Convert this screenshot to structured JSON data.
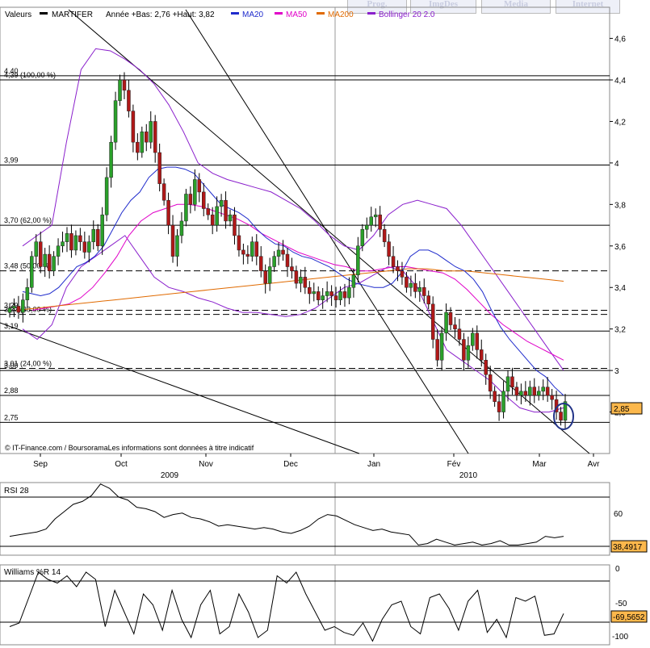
{
  "tabs": [
    {
      "label": "Prog."
    },
    {
      "label": "ImgDes"
    },
    {
      "label": "Media"
    },
    {
      "label": "Internet"
    }
  ],
  "header": {
    "valeurs": "Valeurs",
    "symbol": "MARTIFER",
    "info": "Année +Bas: 2,76 +Haut: 3,82",
    "legend": [
      {
        "name": "MA20",
        "color": "#1f2bcc"
      },
      {
        "name": "MA50",
        "color": "#e000c8"
      },
      {
        "name": "MA200",
        "color": "#e06a00"
      },
      {
        "name": "Bollinger 20 2.0",
        "color": "#8a1fcc"
      }
    ]
  },
  "footer_note": "© IT-Finance.com / BoursoramaLes informations sont données à titre indicatif",
  "chart_data": [
    {
      "type": "candlestick",
      "ylim": [
        2.6,
        4.75
      ],
      "y_ticks": [
        "4,6",
        "4,4",
        "4,2",
        "4",
        "3,8",
        "3,6",
        "3,4",
        "3,2",
        "3",
        "2,8"
      ],
      "x_labels": [
        "Sep",
        "Oct",
        "Nov",
        "Dec",
        "Jan",
        "Fév",
        "Mar",
        "Avr"
      ],
      "year_labels": [
        "2009",
        "2010"
      ],
      "last_price_label": "2,85",
      "levels": [
        {
          "value": 4.42,
          "label": "4,40",
          "style": "solid"
        },
        {
          "value": 4.4,
          "label": "4,39 (100,00 %)",
          "style": "solid"
        },
        {
          "value": 3.99,
          "label": "3,99",
          "style": "solid"
        },
        {
          "value": 3.7,
          "label": "3,70 (62,00 %)",
          "style": "solid"
        },
        {
          "value": 3.48,
          "label": "3,48 (50,00 %)",
          "style": "dashed"
        },
        {
          "value": 3.29,
          "label": "3,29",
          "style": "dashed"
        },
        {
          "value": 3.27,
          "label": "3,27 (38,00 %)",
          "style": "dashed"
        },
        {
          "value": 3.19,
          "label": "3,19",
          "style": "solid"
        },
        {
          "value": 3.01,
          "label": "3,01 (24,00 %)",
          "style": "dashed"
        },
        {
          "value": 3.0,
          "label": "3,00",
          "style": "solid"
        },
        {
          "value": 2.88,
          "label": "2,88",
          "style": "solid"
        },
        {
          "value": 2.75,
          "label": "2,75",
          "style": "solid"
        }
      ],
      "close": [
        3.3,
        3.31,
        3.28,
        3.34,
        3.4,
        3.55,
        3.62,
        3.5,
        3.56,
        3.48,
        3.55,
        3.6,
        3.62,
        3.66,
        3.58,
        3.65,
        3.62,
        3.57,
        3.62,
        3.68,
        3.6,
        3.75,
        3.93,
        4.1,
        4.3,
        4.4,
        4.35,
        4.25,
        4.1,
        4.05,
        4.15,
        4.1,
        4.2,
        4.05,
        3.9,
        3.82,
        3.7,
        3.55,
        3.65,
        3.72,
        3.85,
        3.8,
        3.92,
        3.86,
        3.78,
        3.75,
        3.7,
        3.79,
        3.82,
        3.72,
        3.75,
        3.65,
        3.58,
        3.56,
        3.55,
        3.62,
        3.55,
        3.48,
        3.42,
        3.5,
        3.55,
        3.58,
        3.56,
        3.5,
        3.48,
        3.42,
        3.45,
        3.4,
        3.37,
        3.38,
        3.34,
        3.36,
        3.38,
        3.36,
        3.34,
        3.38,
        3.35,
        3.4,
        3.46,
        3.6,
        3.68,
        3.7,
        3.74,
        3.75,
        3.68,
        3.62,
        3.55,
        3.5,
        3.48,
        3.45,
        3.4,
        3.42,
        3.38,
        3.4,
        3.36,
        3.32,
        3.15,
        3.05,
        3.18,
        3.28,
        3.22,
        3.2,
        3.15,
        3.05,
        3.12,
        3.18,
        3.1,
        3.05,
        2.98,
        2.9,
        2.85,
        2.8,
        2.9,
        2.97,
        2.92,
        2.88,
        2.9,
        2.88,
        2.92,
        2.88,
        2.9,
        2.92,
        2.88,
        2.86,
        2.8,
        2.76,
        2.85
      ],
      "ma20": [
        3.38,
        3.37,
        3.36,
        3.37,
        3.4,
        3.45,
        3.5,
        3.52,
        3.55,
        3.6,
        3.68,
        3.76,
        3.82,
        3.86,
        3.93,
        3.97,
        3.98,
        3.98,
        3.97,
        3.95,
        3.9,
        3.85,
        3.8,
        3.78,
        3.76,
        3.73,
        3.68,
        3.64,
        3.61,
        3.6,
        3.57,
        3.55,
        3.54,
        3.52,
        3.5,
        3.47,
        3.44,
        3.42,
        3.41,
        3.4,
        3.4,
        3.42,
        3.47,
        3.55,
        3.58,
        3.58,
        3.56,
        3.53,
        3.5,
        3.48,
        3.44,
        3.38,
        3.29,
        3.21,
        3.15,
        3.1,
        3.05,
        3.0,
        2.97,
        2.92,
        2.88
      ],
      "ma50": [
        3.29,
        3.3,
        3.31,
        3.32,
        3.35,
        3.4,
        3.47,
        3.55,
        3.65,
        3.72,
        3.76,
        3.78,
        3.8,
        3.8,
        3.79,
        3.77,
        3.75,
        3.73,
        3.7,
        3.66,
        3.63,
        3.6,
        3.57,
        3.55,
        3.53,
        3.51,
        3.5,
        3.48,
        3.48,
        3.49,
        3.5,
        3.5,
        3.49,
        3.48,
        3.47,
        3.44,
        3.39,
        3.33,
        3.27,
        3.22,
        3.18,
        3.14,
        3.11,
        3.08,
        3.05
      ],
      "ma200": [
        3.29,
        3.3,
        3.31,
        3.32,
        3.33,
        3.34,
        3.35,
        3.36,
        3.37,
        3.38,
        3.39,
        3.4,
        3.41,
        3.42,
        3.43,
        3.44,
        3.45,
        3.46,
        3.47,
        3.48,
        3.49,
        3.49,
        3.48,
        3.48,
        3.47,
        3.46,
        3.45,
        3.44,
        3.43
      ],
      "boll_upper": [
        3.6,
        3.65,
        3.7,
        4.1,
        4.45,
        4.55,
        4.54,
        4.5,
        4.45,
        4.38,
        4.28,
        4.15,
        4.0,
        3.95,
        3.92,
        3.9,
        3.88,
        3.86,
        3.82,
        3.78,
        3.72,
        3.65,
        3.6,
        3.58,
        3.65,
        3.75,
        3.8,
        3.82,
        3.8,
        3.78,
        3.7,
        3.6,
        3.5,
        3.4,
        3.3,
        3.2,
        3.1,
        3.0
      ],
      "boll_lower": [
        3.2,
        3.15,
        3.22,
        3.4,
        3.5,
        3.55,
        3.6,
        3.65,
        3.55,
        3.45,
        3.4,
        3.38,
        3.35,
        3.33,
        3.3,
        3.28,
        3.28,
        3.27,
        3.26,
        3.27,
        3.3,
        3.35,
        3.4,
        3.42,
        3.46,
        3.5,
        3.48,
        3.4,
        3.25,
        3.1,
        3.05,
        3.0,
        2.95,
        2.88,
        2.82,
        2.8,
        2.8,
        2.82
      ],
      "trendlines": [
        "descending channel",
        "secondary downtrend"
      ]
    },
    {
      "type": "line",
      "title": "RSI 28",
      "ylim": [
        25,
        75
      ],
      "y_ticks": [
        "60"
      ],
      "last_value_label": "38,4917",
      "values": [
        38,
        39,
        40,
        41,
        43,
        50,
        55,
        60,
        62,
        66,
        74,
        71,
        65,
        63,
        58,
        57,
        55,
        51,
        53,
        54,
        51,
        50,
        48,
        45,
        46,
        45,
        44,
        43,
        44,
        43,
        41,
        40,
        42,
        45,
        50,
        53,
        52,
        49,
        46,
        44,
        42,
        43,
        41,
        40,
        39,
        32,
        33,
        36,
        34,
        32,
        33,
        34,
        32,
        33,
        35,
        32,
        32,
        33,
        34,
        38,
        37,
        38
      ]
    },
    {
      "type": "line",
      "title": "Williams %R 14",
      "ylim": [
        -105,
        5
      ],
      "y_ticks": [
        "0",
        "-50",
        "-100"
      ],
      "last_value_label": "-69,5652",
      "values": [
        -80,
        -75,
        -40,
        -5,
        -15,
        -20,
        -10,
        -25,
        -5,
        -15,
        -80,
        -30,
        -60,
        -90,
        -35,
        -50,
        -85,
        -30,
        -70,
        -95,
        -50,
        -30,
        -90,
        -80,
        -35,
        -60,
        -95,
        -85,
        -10,
        -20,
        -5,
        -35,
        -60,
        -85,
        -80,
        -88,
        -92,
        -75,
        -100,
        -70,
        -50,
        -45,
        -80,
        -90,
        -40,
        -35,
        -55,
        -85,
        -45,
        -30,
        -88,
        -70,
        -95,
        -40,
        -45,
        -38,
        -92,
        -90,
        -62
      ]
    }
  ]
}
